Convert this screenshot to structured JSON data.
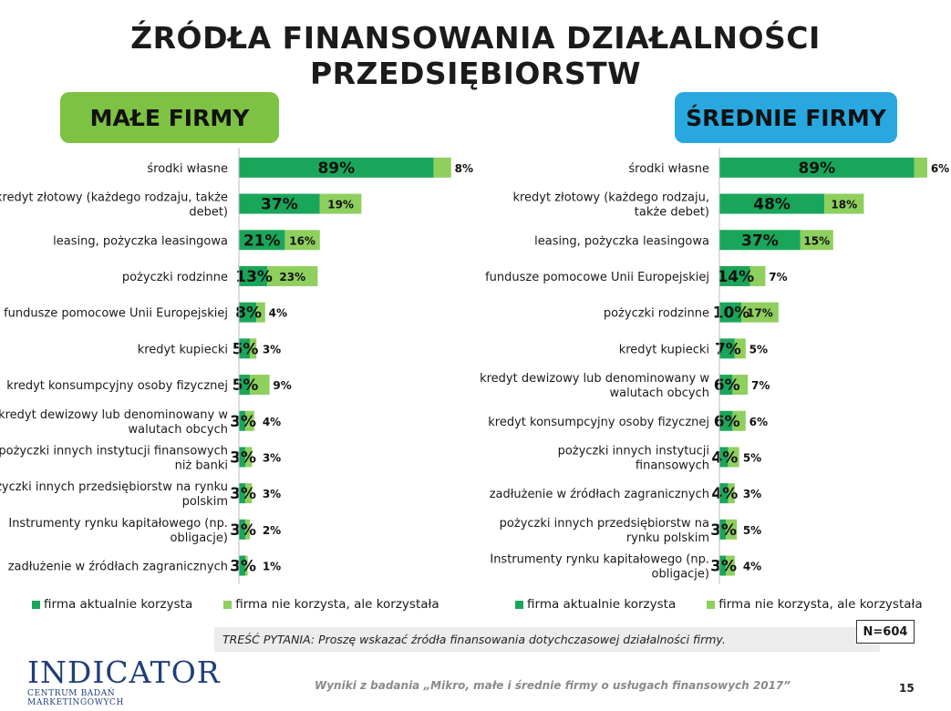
{
  "title": "ŹRÓDŁA FINANSOWANIA DZIAŁALNOŚCI PRZEDSIĘBIORSTW",
  "colors": {
    "current": "#1aa65a",
    "former": "#8fcf5e",
    "small_badge": "#7dc242",
    "medium_badge": "#29a8e0"
  },
  "legend": {
    "current": "firma aktualnie korzysta",
    "former": "firma nie korzysta, ale korzystała"
  },
  "question": "TREŚĆ PYTANIA: Proszę wskazać źródła finansowania dotychczasowej działalności firmy.",
  "sample": "N=604",
  "logo": {
    "name": "INDICATOR",
    "subtitle": "CENTRUM BADAŃ MARKETINGOWYCH"
  },
  "footer": "Wyniki z badania „Mikro, małe i średnie firmy o usługach finansowych 2017”",
  "page_number": "15",
  "chart_data": [
    {
      "type": "bar",
      "title": "MAŁE FIRMY",
      "stacked": true,
      "orientation": "horizontal",
      "categories": [
        "środki własne",
        "kredyt złotowy (każdego rodzaju, także debet)",
        "leasing, pożyczka leasingowa",
        "pożyczki rodzinne",
        "fundusze pomocowe Unii Europejskiej",
        "kredyt kupiecki",
        "kredyt konsumpcyjny osoby fizycznej",
        "kredyt dewizowy lub denominowany w walutach obcych",
        "pożyczki innych instytucji finansowych niż banki",
        "pożyczki innych przedsiębiorstw na rynku polskim",
        "Instrumenty rynku kapitałowego (np. obligacje)",
        "zadłużenie w źródłach zagranicznych"
      ],
      "series": [
        {
          "name": "firma aktualnie korzysta",
          "values": [
            89,
            37,
            21,
            13,
            8,
            5,
            5,
            3,
            3,
            3,
            3,
            3
          ]
        },
        {
          "name": "firma nie korzysta, ale korzystała",
          "values": [
            8,
            19,
            16,
            23,
            4,
            3,
            9,
            4,
            3,
            3,
            2,
            1
          ]
        }
      ]
    },
    {
      "type": "bar",
      "title": "ŚREDNIE FIRMY",
      "stacked": true,
      "orientation": "horizontal",
      "categories": [
        "środki własne",
        "kredyt złotowy (każdego rodzaju, także debet)",
        "leasing, pożyczka leasingowa",
        "fundusze pomocowe Unii Europejskiej",
        "pożyczki rodzinne",
        "kredyt kupiecki",
        "kredyt dewizowy lub denominowany w walutach obcych",
        "kredyt konsumpcyjny osoby fizycznej",
        "pożyczki innych instytucji finansowych",
        "zadłużenie w źródłach zagranicznych",
        "pożyczki innych przedsiębiorstw na rynku polskim",
        "Instrumenty rynku kapitałowego (np. obligacje)"
      ],
      "series": [
        {
          "name": "firma aktualnie korzysta",
          "values": [
            89,
            48,
            37,
            14,
            10,
            7,
            6,
            6,
            4,
            4,
            3,
            3
          ]
        },
        {
          "name": "firma nie korzysta, ale korzystała",
          "values": [
            6,
            18,
            15,
            7,
            17,
            5,
            7,
            6,
            5,
            3,
            5,
            4
          ]
        }
      ]
    }
  ]
}
